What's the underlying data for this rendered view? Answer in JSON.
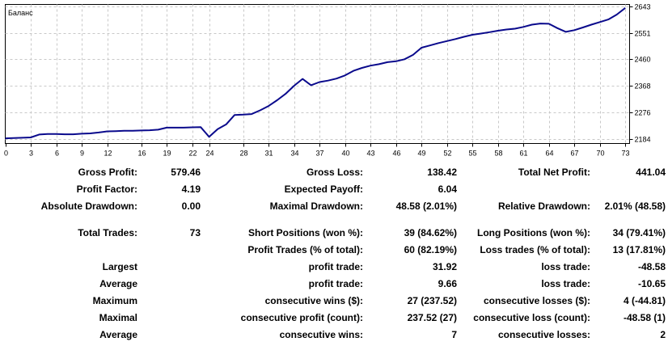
{
  "chart_data": {
    "type": "line",
    "title": "Баланс",
    "xlabel": "",
    "ylabel": "",
    "x_ticks": [
      0,
      3,
      6,
      9,
      12,
      16,
      19,
      22,
      24,
      28,
      31,
      34,
      37,
      40,
      43,
      46,
      49,
      52,
      55,
      58,
      61,
      64,
      67,
      70,
      73
    ],
    "y_ticks": [
      "2184",
      "2276",
      "2368",
      "2460",
      "2551",
      "2643"
    ],
    "xlim": [
      0,
      73.5
    ],
    "ylim": [
      2168,
      2650
    ],
    "grid": true,
    "line_color": "#0a0a8c",
    "series": [
      {
        "x": [
          0,
          1,
          2,
          3,
          4,
          5,
          6,
          7,
          8,
          9,
          10,
          11,
          12,
          13,
          14,
          15,
          16,
          17,
          18,
          19,
          20,
          21,
          22,
          23,
          24,
          25,
          26,
          27,
          28,
          29,
          30,
          31,
          32,
          33,
          34,
          35,
          36,
          37,
          38,
          39,
          40,
          41,
          42,
          43,
          44,
          45,
          46,
          47,
          48,
          49,
          50,
          51,
          52,
          53,
          54,
          55,
          56,
          57,
          58,
          59,
          60,
          61,
          62,
          63,
          64,
          65,
          66,
          67,
          68,
          69,
          70,
          71,
          72,
          73
        ],
        "values": [
          2186,
          2187,
          2188,
          2189,
          2199,
          2201,
          2201,
          2200,
          2200,
          2202,
          2203,
          2206,
          2210,
          2211,
          2212,
          2212,
          2213,
          2214,
          2216,
          2223,
          2223,
          2223,
          2224,
          2225,
          2191,
          2218,
          2234,
          2267,
          2268,
          2270,
          2283,
          2298,
          2318,
          2340,
          2368,
          2392,
          2370,
          2381,
          2386,
          2393,
          2404,
          2420,
          2430,
          2438,
          2443,
          2450,
          2453,
          2460,
          2475,
          2500,
          2508,
          2516,
          2523,
          2530,
          2538,
          2545,
          2549,
          2554,
          2559,
          2563,
          2566,
          2572,
          2580,
          2584,
          2583,
          2568,
          2555,
          2561,
          2570,
          2580,
          2589,
          2598,
          2615,
          2638
        ]
      }
    ]
  },
  "stats": [
    {
      "c1": "Gross Profit:",
      "c2": "579.46",
      "c3": "Gross Loss:",
      "c4": "138.42",
      "c5": "Total Net Profit:",
      "c6": "441.04"
    },
    {
      "c1": "Profit Factor:",
      "c2": "4.19",
      "c3": "Expected Payoff:",
      "c4": "6.04",
      "c5": "",
      "c6": ""
    },
    {
      "c1": "Absolute Drawdown:",
      "c2": "0.00",
      "c3": "Maximal Drawdown:",
      "c4": "48.58 (2.01%)",
      "c5": "Relative Drawdown:",
      "c6": "2.01% (48.58)"
    },
    {
      "c1": "Total Trades:",
      "c2": "73",
      "c3": "Short Positions (won %):",
      "c4": "39 (84.62%)",
      "c5": "Long Positions (won %):",
      "c6": "34 (79.41%)"
    },
    {
      "c1": "",
      "c2": "",
      "c3": "Profit Trades (% of total):",
      "c4": "60 (82.19%)",
      "c5": "Loss trades (% of total):",
      "c6": "13 (17.81%)"
    },
    {
      "c1": "Largest",
      "c2": "",
      "c3": "profit trade:",
      "c4": "31.92",
      "c5": "loss trade:",
      "c6": "-48.58"
    },
    {
      "c1": "Average",
      "c2": "",
      "c3": "profit trade:",
      "c4": "9.66",
      "c5": "loss trade:",
      "c6": "-10.65"
    },
    {
      "c1": "Maximum",
      "c2": "",
      "c3": "consecutive wins ($):",
      "c4": "27 (237.52)",
      "c5": "consecutive losses ($):",
      "c6": "4 (-44.81)"
    },
    {
      "c1": "Maximal",
      "c2": "",
      "c3": "consecutive profit (count):",
      "c4": "237.52 (27)",
      "c5": "consecutive loss (count):",
      "c6": "-48.58 (1)"
    },
    {
      "c1": "Average",
      "c2": "",
      "c3": "consecutive wins:",
      "c4": "7",
      "c5": "consecutive losses:",
      "c6": "2"
    }
  ]
}
